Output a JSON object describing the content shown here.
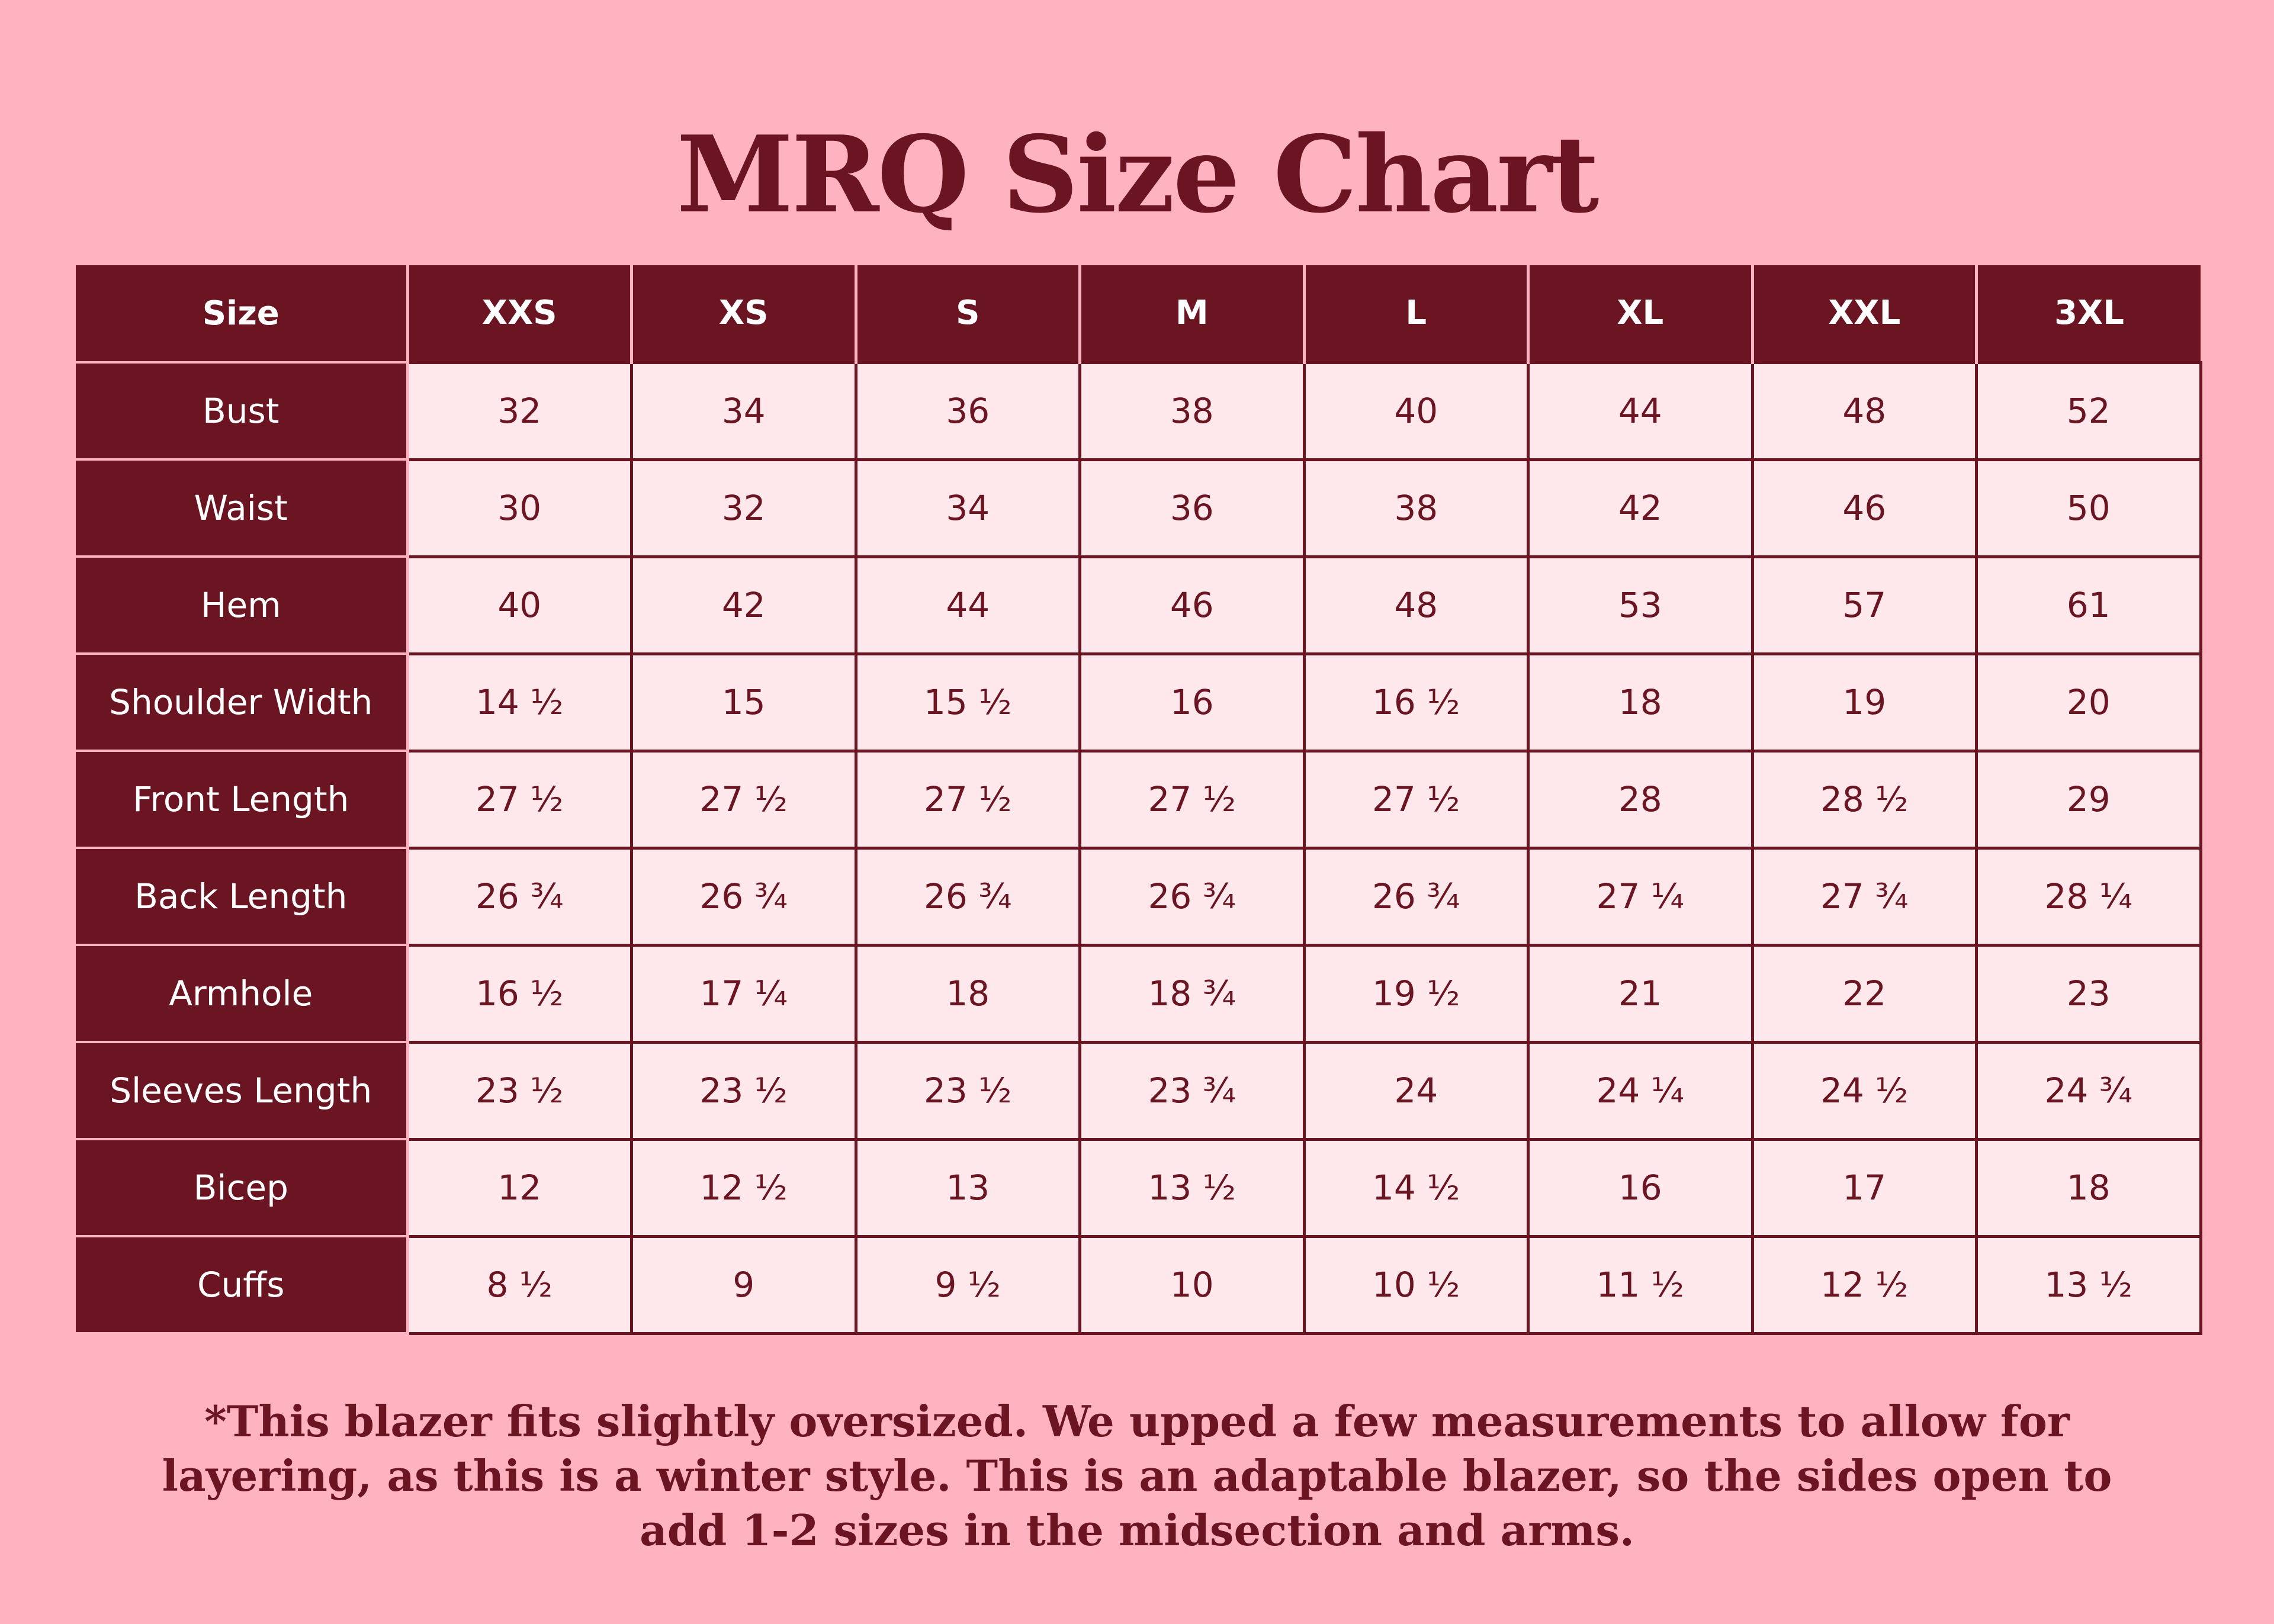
{
  "title": "MRQ Size Chart",
  "colors": {
    "background": "#ffb3c1",
    "header_fill": "#6b1422",
    "cell_fill": "#ffe8eb",
    "text_dark": "#6b1422"
  },
  "table": {
    "corner_label": "Size",
    "sizes": [
      "XXS",
      "XS",
      "S",
      "M",
      "L",
      "XL",
      "XXL",
      "3XL"
    ],
    "rows": [
      {
        "label": "Bust",
        "values": [
          "32",
          "34",
          "36",
          "38",
          "40",
          "44",
          "48",
          "52"
        ]
      },
      {
        "label": "Waist",
        "values": [
          "30",
          "32",
          "34",
          "36",
          "38",
          "42",
          "46",
          "50"
        ]
      },
      {
        "label": "Hem",
        "values": [
          "40",
          "42",
          "44",
          "46",
          "48",
          "53",
          "57",
          "61"
        ]
      },
      {
        "label": "Shoulder Width",
        "values": [
          "14 ½",
          "15",
          "15 ½",
          "16",
          "16 ½",
          "18",
          "19",
          "20"
        ]
      },
      {
        "label": "Front Length",
        "values": [
          "27 ½",
          "27 ½",
          "27 ½",
          "27 ½",
          "27 ½",
          "28",
          "28 ½",
          "29"
        ]
      },
      {
        "label": "Back Length",
        "values": [
          "26 ¾",
          "26 ¾",
          "26 ¾",
          "26 ¾",
          "26 ¾",
          "27 ¼",
          "27 ¾",
          "28 ¼"
        ]
      },
      {
        "label": "Armhole",
        "values": [
          "16 ½",
          "17 ¼",
          "18",
          "18 ¾",
          "19 ½",
          "21",
          "22",
          "23"
        ]
      },
      {
        "label": "Sleeves Length",
        "values": [
          "23 ½",
          "23 ½",
          "23 ½",
          "23 ¾",
          "24",
          "24 ¼",
          "24 ½",
          "24 ¾"
        ]
      },
      {
        "label": "Bicep",
        "values": [
          "12",
          "12 ½",
          "13",
          "13 ½",
          "14 ½",
          "16",
          "17",
          "18"
        ]
      },
      {
        "label": "Cuffs",
        "values": [
          "8 ½",
          "9",
          "9 ½",
          "10",
          "10 ½",
          "11 ½",
          "12 ½",
          "13 ½"
        ]
      }
    ]
  },
  "note": "*This blazer fits slightly oversized. We upped a few measurements to allow for layering, as this is a winter style. This is an adaptable blazer, so the sides open to add 1-2 sizes in the midsection and arms."
}
